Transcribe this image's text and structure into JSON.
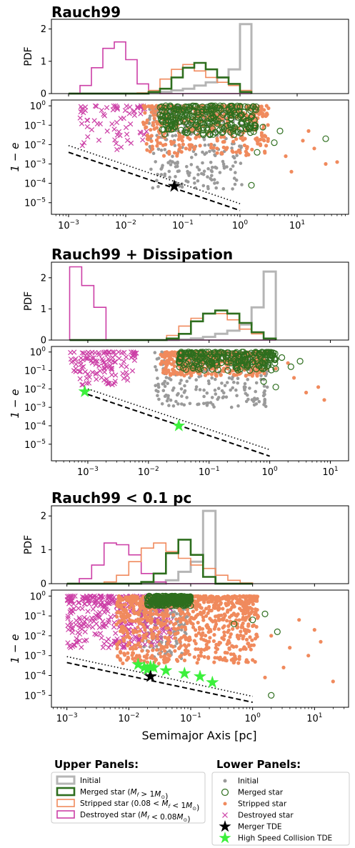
{
  "figure": {
    "xlabel": "Semimajor Axis [pc]",
    "pdf_label": "PDF",
    "ecc_label": "1 − e"
  },
  "colors": {
    "initial": "#b5b5b5",
    "initial_scatter": "#9a9a9a",
    "merged": "#2e6e1e",
    "stripped": "#f08a5d",
    "destroyed": "#cc3fa6",
    "merger_tde": "#000000",
    "hs_tde": "#3cf03c"
  },
  "legend": {
    "upper_title": "Upper Panels:",
    "upper_items": [
      {
        "key": "initial",
        "label": "Initial"
      },
      {
        "key": "merged",
        "label": "Merged star (M_f > 1M_⊙)"
      },
      {
        "key": "stripped",
        "label": "Stripped star (0.08 < M_f < 1M_⊙)"
      },
      {
        "key": "destroyed",
        "label": "Destroyed star (M_f < 0.08M_⊙)"
      }
    ],
    "lower_title": "Lower Panels:",
    "lower_items": [
      {
        "key": "initial",
        "label": "Initial",
        "marker": "dot"
      },
      {
        "key": "merged",
        "label": "Merged star",
        "marker": "circle"
      },
      {
        "key": "stripped",
        "label": "Stripped star",
        "marker": "dot"
      },
      {
        "key": "destroyed",
        "label": "Destroyed star",
        "marker": "x"
      },
      {
        "key": "merger_tde",
        "label": "Merger TDE",
        "marker": "star"
      },
      {
        "key": "hs_tde",
        "label": "High Speed Collision TDE",
        "marker": "star"
      }
    ]
  },
  "chart_data": [
    {
      "title": "Rauch99",
      "xlim_log": [
        -3.3,
        1.9
      ],
      "xticks": [
        -3,
        -2,
        -1,
        0,
        1
      ],
      "hist": {
        "type": "step",
        "ylim": [
          0,
          2.3
        ],
        "yticks": [
          0,
          1,
          2
        ],
        "bin_edges_log": [
          -3.0,
          -2.8,
          -2.6,
          -2.4,
          -2.2,
          -2.0,
          -1.8,
          -1.6,
          -1.4,
          -1.2,
          -1.0,
          -0.8,
          -0.6,
          -0.4,
          -0.2,
          0.0,
          0.2
        ],
        "series": [
          {
            "key": "initial",
            "values": [
              0,
              0,
              0,
              0,
              0,
              0,
              0,
              0.02,
              0.05,
              0.1,
              0.15,
              0.25,
              0.35,
              0.5,
              0.75,
              2.15
            ]
          },
          {
            "key": "merged",
            "values": [
              0,
              0,
              0,
              0,
              0,
              0,
              0,
              0.05,
              0.15,
              0.5,
              0.8,
              0.95,
              0.75,
              0.5,
              0.3,
              0.05
            ]
          },
          {
            "key": "stripped",
            "values": [
              0,
              0,
              0,
              0,
              0,
              0,
              0.02,
              0.1,
              0.45,
              0.75,
              0.9,
              0.7,
              0.5,
              0.35,
              0.25,
              0.1
            ]
          },
          {
            "key": "destroyed",
            "values": [
              0,
              0.25,
              0.8,
              1.4,
              1.6,
              1.05,
              0.3,
              0.05,
              0,
              0,
              0,
              0,
              0,
              0,
              0,
              0
            ]
          }
        ]
      },
      "scatter": {
        "ylim_log": [
          -5.6,
          0.3
        ],
        "yticks": [
          -5,
          -4,
          -3,
          -2,
          -1,
          0
        ],
        "initial": {
          "x_log": [
            -1.6,
            0.05
          ],
          "y_log": [
            -4.3,
            0
          ],
          "n": 320
        },
        "stripped": {
          "x_log": [
            -1.7,
            0.5
          ],
          "y_log": [
            -2.6,
            0
          ],
          "n": 420
        },
        "stripped_far": [
          [
            0.8,
            -2.6
          ],
          [
            1.1,
            -1.8
          ],
          [
            1.3,
            -2.2
          ],
          [
            1.5,
            -3.0
          ],
          [
            1.2,
            -1.3
          ],
          [
            1.7,
            -2.9
          ],
          [
            0.9,
            -3.4
          ]
        ],
        "merged": {
          "x_log": [
            -1.4,
            0.3
          ],
          "y_log": [
            -1.5,
            0
          ],
          "n": 260
        },
        "merged_far": [
          [
            0.4,
            -1.1
          ],
          [
            0.6,
            -1.9
          ],
          [
            0.7,
            -1.3
          ],
          [
            0.3,
            -2.4
          ],
          [
            1.5,
            -1.7
          ],
          [
            0.2,
            -4.1
          ]
        ],
        "destroyed": {
          "x_log": [
            -2.8,
            -1.6
          ],
          "y_log": [
            -2.4,
            0
          ],
          "n": 70
        },
        "merger_tde": [
          [
            -1.15,
            -4.15
          ]
        ],
        "hs_tde": [],
        "lines": [
          {
            "style": "dotted",
            "x_log": [
              -3.0,
              0.0
            ],
            "y_log": [
              -2.05,
              -5.05
            ]
          },
          {
            "style": "dashed",
            "x_log": [
              -3.0,
              0.0
            ],
            "y_log": [
              -2.4,
              -5.4
            ]
          }
        ]
      }
    },
    {
      "title": "Rauch99 + Dissipation",
      "xlim_log": [
        -3.6,
        1.3
      ],
      "xticks": [
        -3,
        -2,
        -1,
        0,
        1
      ],
      "hist": {
        "type": "step",
        "ylim": [
          0,
          2.5
        ],
        "yticks": [
          0,
          1,
          2
        ],
        "bin_edges_log": [
          -3.3,
          -3.1,
          -2.9,
          -2.7,
          -2.5,
          -2.3,
          -2.1,
          -1.9,
          -1.7,
          -1.5,
          -1.3,
          -1.1,
          -0.9,
          -0.7,
          -0.5,
          -0.3,
          -0.1,
          0.1
        ],
        "series": [
          {
            "key": "initial",
            "values": [
              0,
              0,
              0,
              0,
              0,
              0,
              0,
              0,
              0,
              0.02,
              0.05,
              0.1,
              0.2,
              0.3,
              0.5,
              1.05,
              2.2
            ]
          },
          {
            "key": "merged",
            "values": [
              0,
              0,
              0,
              0,
              0,
              0,
              0,
              0,
              0.05,
              0.2,
              0.6,
              0.85,
              0.95,
              0.85,
              0.55,
              0.25,
              0.05
            ]
          },
          {
            "key": "stripped",
            "values": [
              0,
              0,
              0,
              0,
              0,
              0,
              0,
              0,
              0.15,
              0.45,
              0.7,
              0.85,
              0.85,
              0.65,
              0.35,
              0.2,
              0.05
            ]
          },
          {
            "key": "destroyed",
            "values": [
              2.35,
              1.75,
              1.05,
              0,
              0,
              0,
              0,
              0,
              0,
              0,
              0,
              0,
              0,
              0,
              0,
              0,
              0
            ]
          }
        ]
      },
      "scatter": {
        "ylim_log": [
          -5.9,
          0.3
        ],
        "yticks": [
          -5,
          -4,
          -3,
          -2,
          -1,
          0
        ],
        "initial": {
          "x_log": [
            -1.9,
            0.0
          ],
          "y_log": [
            -3.0,
            0
          ],
          "n": 300
        },
        "stripped": {
          "x_log": [
            -1.8,
            -0.05
          ],
          "y_log": [
            -1.3,
            0
          ],
          "n": 420
        },
        "stripped_far": [
          [
            0.1,
            -0.9
          ],
          [
            0.4,
            -1.4
          ],
          [
            0.6,
            -2.2
          ],
          [
            0.9,
            -2.6
          ],
          [
            0.8,
            -1.9
          ],
          [
            0.3,
            -0.6
          ]
        ],
        "merged": {
          "x_log": [
            -1.5,
            0.1
          ],
          "y_log": [
            -1.0,
            0
          ],
          "n": 240
        },
        "merged_far": [
          [
            0.2,
            -0.3
          ],
          [
            0.35,
            -0.8
          ],
          [
            0.5,
            -0.5
          ],
          [
            -0.1,
            -1.6
          ],
          [
            0.1,
            -1.9
          ]
        ],
        "destroyed": {
          "x_log": [
            -3.3,
            -2.2
          ],
          "y_log": [
            -1.8,
            0
          ],
          "n": 120
        },
        "merger_tde": [],
        "hs_tde": [
          [
            -3.05,
            -2.15
          ],
          [
            -1.5,
            -4.0
          ]
        ],
        "lines": [
          {
            "style": "dotted",
            "x_log": [
              -3.0,
              0.0
            ],
            "y_log": [
              -2.0,
              -5.3
            ]
          },
          {
            "style": "dashed",
            "x_log": [
              -3.0,
              0.0
            ],
            "y_log": [
              -2.3,
              -5.65
            ]
          }
        ]
      }
    },
    {
      "title": "Rauch99 < 0.1 pc",
      "xlim_log": [
        -3.25,
        1.55
      ],
      "xticks": [
        -3,
        -2,
        -1,
        0,
        1
      ],
      "hist": {
        "type": "step",
        "ylim": [
          0,
          2.3
        ],
        "yticks": [
          0,
          1,
          2
        ],
        "bin_edges_log": [
          -3.0,
          -2.8,
          -2.6,
          -2.4,
          -2.2,
          -2.0,
          -1.8,
          -1.6,
          -1.4,
          -1.2,
          -1.0,
          -0.8,
          -0.6,
          -0.4,
          -0.2,
          0.0
        ],
        "series": [
          {
            "key": "initial",
            "values": [
              0,
              0,
              0,
              0,
              0,
              0,
              0,
              0,
              0.1,
              0.35,
              0.65,
              2.15,
              0,
              0,
              0
            ]
          },
          {
            "key": "merged",
            "values": [
              0,
              0,
              0,
              0,
              0,
              0,
              0.05,
              0.3,
              0.9,
              1.3,
              0.85,
              0.2,
              0,
              0,
              0
            ]
          },
          {
            "key": "stripped",
            "values": [
              0,
              0,
              0,
              0.05,
              0.25,
              0.65,
              1.05,
              1.2,
              0.95,
              0.75,
              0.55,
              0.45,
              0.25,
              0.1,
              0.02
            ]
          },
          {
            "key": "destroyed",
            "values": [
              0,
              0.15,
              0.55,
              1.2,
              1.15,
              0.85,
              0.3,
              0.05,
              0,
              0,
              0,
              0,
              0,
              0,
              0
            ]
          }
        ]
      },
      "scatter": {
        "ylim_log": [
          -5.6,
          0.3
        ],
        "yticks": [
          -5,
          -4,
          -3,
          -2,
          -1,
          0
        ],
        "initial": {
          "x_log": [
            -1.8,
            -1.05
          ],
          "y_log": [
            -3.2,
            0
          ],
          "n": 200
        },
        "stripped": {
          "x_log": [
            -2.2,
            0.1
          ],
          "y_log": [
            -3.4,
            0
          ],
          "n": 900
        },
        "stripped_far": [
          [
            0.3,
            -2.0
          ],
          [
            0.6,
            -2.6
          ],
          [
            0.9,
            -3.0
          ],
          [
            1.1,
            -2.3
          ],
          [
            1.3,
            -4.3
          ],
          [
            0.5,
            -3.6
          ],
          [
            0.2,
            -4.1
          ],
          [
            1.0,
            -1.7
          ],
          [
            0.75,
            -1.2
          ]
        ],
        "merged": {
          "x_log": [
            -1.7,
            -1.0
          ],
          "y_log": [
            -0.5,
            0
          ],
          "n": 220
        },
        "merged_far": [
          [
            0.0,
            -1.2
          ],
          [
            0.2,
            -0.9
          ],
          [
            0.4,
            -1.8
          ],
          [
            -0.3,
            -1.4
          ],
          [
            0.3,
            -5.0
          ]
        ],
        "destroyed": {
          "x_log": [
            -3.0,
            -1.3
          ],
          "y_log": [
            -2.6,
            0
          ],
          "n": 380
        },
        "merger_tde": [
          [
            -1.65,
            -4.05
          ]
        ],
        "hs_tde": [
          [
            -1.85,
            -3.45
          ],
          [
            -1.75,
            -3.6
          ],
          [
            -1.7,
            -3.7
          ],
          [
            -1.65,
            -3.55
          ],
          [
            -1.6,
            -3.6
          ],
          [
            -1.4,
            -3.75
          ],
          [
            -1.1,
            -3.9
          ],
          [
            -0.85,
            -4.05
          ],
          [
            -0.65,
            -4.35
          ]
        ],
        "lines": [
          {
            "style": "dotted",
            "x_log": [
              -3.0,
              0.0
            ],
            "y_log": [
              -3.05,
              -5.05
            ]
          },
          {
            "style": "dashed",
            "x_log": [
              -3.0,
              0.0
            ],
            "y_log": [
              -3.35,
              -5.35
            ]
          }
        ]
      }
    }
  ]
}
